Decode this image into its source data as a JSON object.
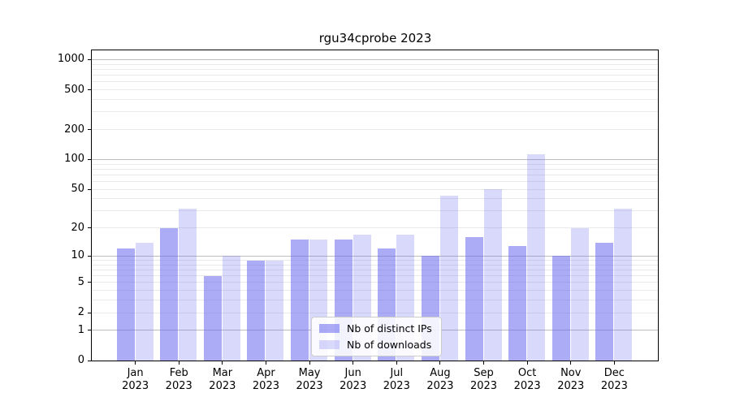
{
  "title": "rgu34cprobe 2023",
  "legend": {
    "items": [
      {
        "label": "Nb of distinct IPs"
      },
      {
        "label": "Nb of downloads"
      }
    ]
  },
  "chart_data": {
    "type": "bar",
    "title": "rgu34cprobe 2023",
    "x": [
      "Jan 2023",
      "Feb 2023",
      "Mar 2023",
      "Apr 2023",
      "May 2023",
      "Jun 2023",
      "Jul 2023",
      "Aug 2023",
      "Sep 2023",
      "Oct 2023",
      "Nov 2023",
      "Dec 2023"
    ],
    "series": [
      {
        "name": "Nb of distinct IPs",
        "color": "rgba(102,102,238,0.55)",
        "values": [
          12,
          20,
          6,
          9,
          15,
          15,
          12,
          10,
          16,
          13,
          10,
          14
        ]
      },
      {
        "name": "Nb of downloads",
        "color": "rgba(102,102,238,0.25)",
        "values": [
          14,
          32,
          10,
          9,
          15,
          17,
          17,
          43,
          50,
          112,
          20,
          32
        ]
      }
    ],
    "y_scale": "log1p",
    "ylim": [
      0,
      1260
    ],
    "y_ticks": [
      0,
      1,
      2,
      5,
      10,
      20,
      50,
      100,
      200,
      500,
      1000
    ],
    "y_gridlines_major": [
      1,
      10,
      100,
      1000
    ],
    "y_gridlines_minor": [
      2,
      3,
      4,
      5,
      6,
      7,
      8,
      9,
      20,
      30,
      40,
      50,
      60,
      70,
      80,
      90,
      200,
      300,
      400,
      500,
      600,
      700,
      800,
      900
    ],
    "grid": true,
    "legend_position": "lower center",
    "xlabel": "",
    "ylabel": ""
  }
}
